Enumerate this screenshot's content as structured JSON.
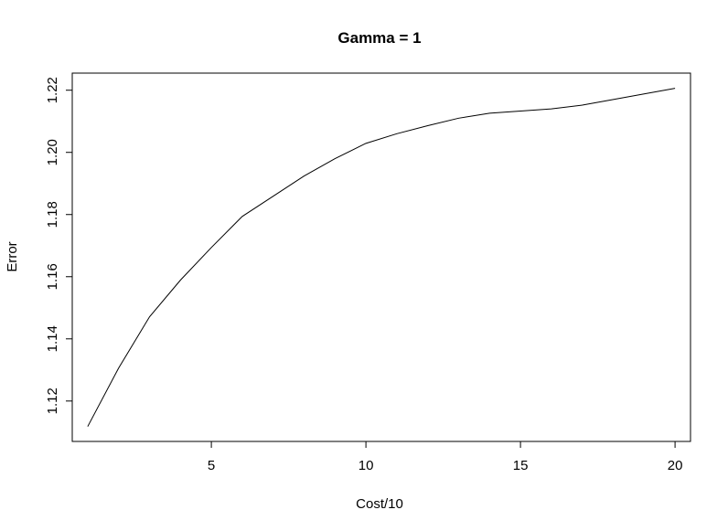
{
  "chart_data": {
    "type": "line",
    "title": "Gamma = 1",
    "xlabel": "Cost/10",
    "ylabel": "Error",
    "xlim": [
      0.5,
      20.5
    ],
    "ylim": [
      1.107,
      1.2255
    ],
    "x_ticks": [
      5,
      10,
      15,
      20
    ],
    "y_ticks": [
      1.12,
      1.14,
      1.16,
      1.18,
      1.2,
      1.22
    ],
    "x_tick_labels": [
      "5",
      "10",
      "15",
      "20"
    ],
    "y_tick_labels": [
      "1.12",
      "1.14",
      "1.16",
      "1.18",
      "1.20",
      "1.22"
    ],
    "grid": false,
    "line_color": "#000000",
    "series": [
      {
        "x": [
          1,
          2,
          3,
          4,
          5,
          6,
          7,
          8,
          9,
          10,
          11,
          12,
          13,
          14,
          15,
          16,
          17,
          18,
          19,
          20
        ],
        "values": [
          1.1118,
          1.1306,
          1.1471,
          1.1589,
          1.1694,
          1.1794,
          1.1859,
          1.1924,
          1.198,
          1.2029,
          1.206,
          1.2086,
          1.211,
          1.2126,
          1.2133,
          1.214,
          1.2152,
          1.217,
          1.2188,
          1.2206
        ]
      }
    ]
  }
}
